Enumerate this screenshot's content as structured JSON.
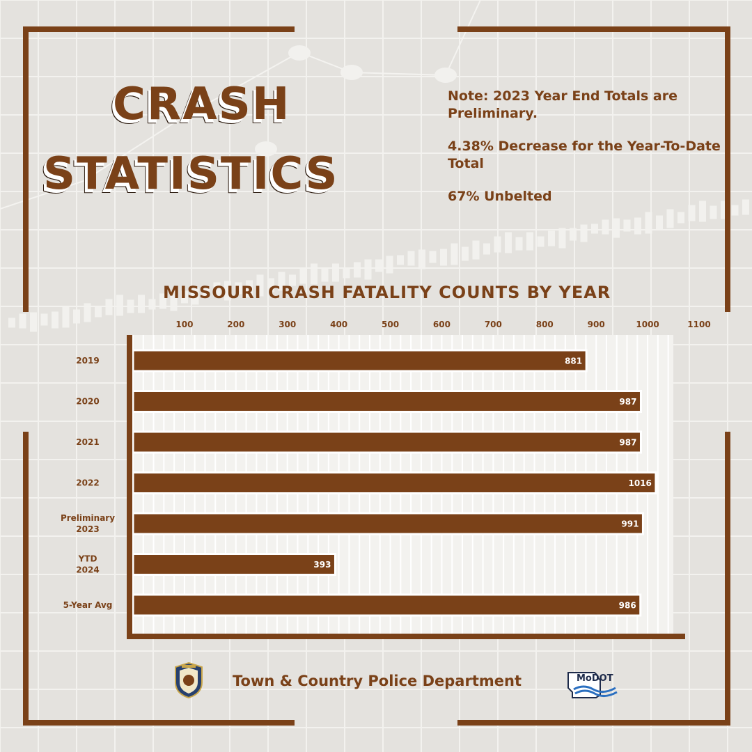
{
  "title": {
    "line1": "Crash",
    "line2": "Statistics"
  },
  "notes": {
    "note": "Note: 2023 Year End Totals are Preliminary.",
    "decrease": "4.38% Decrease for the Year-To-Date Total",
    "unbelted": "67% Unbelted"
  },
  "footer": {
    "department": "Town & Country Police Department",
    "badge_icon": "police-badge-icon",
    "modot_label": "MoDOT"
  },
  "colors": {
    "accent": "#7a4118",
    "background": "#e7e5e1",
    "bar_label": "#ffffff"
  },
  "chart_data": {
    "type": "bar",
    "orientation": "horizontal",
    "title": "Missouri Crash Fatality Counts by Year",
    "categories": [
      [
        "2019"
      ],
      [
        "2020"
      ],
      [
        "2021"
      ],
      [
        "2022"
      ],
      [
        "Preliminary",
        "2023"
      ],
      [
        "YTD",
        "2024"
      ],
      [
        "5-Year Avg"
      ]
    ],
    "values": [
      881,
      987,
      987,
      1016,
      991,
      393,
      986
    ],
    "xticks": [
      100,
      200,
      300,
      400,
      500,
      600,
      700,
      800,
      900,
      1000,
      1100
    ],
    "xlim": [
      0,
      1100
    ],
    "grid": true,
    "legend": "none"
  }
}
